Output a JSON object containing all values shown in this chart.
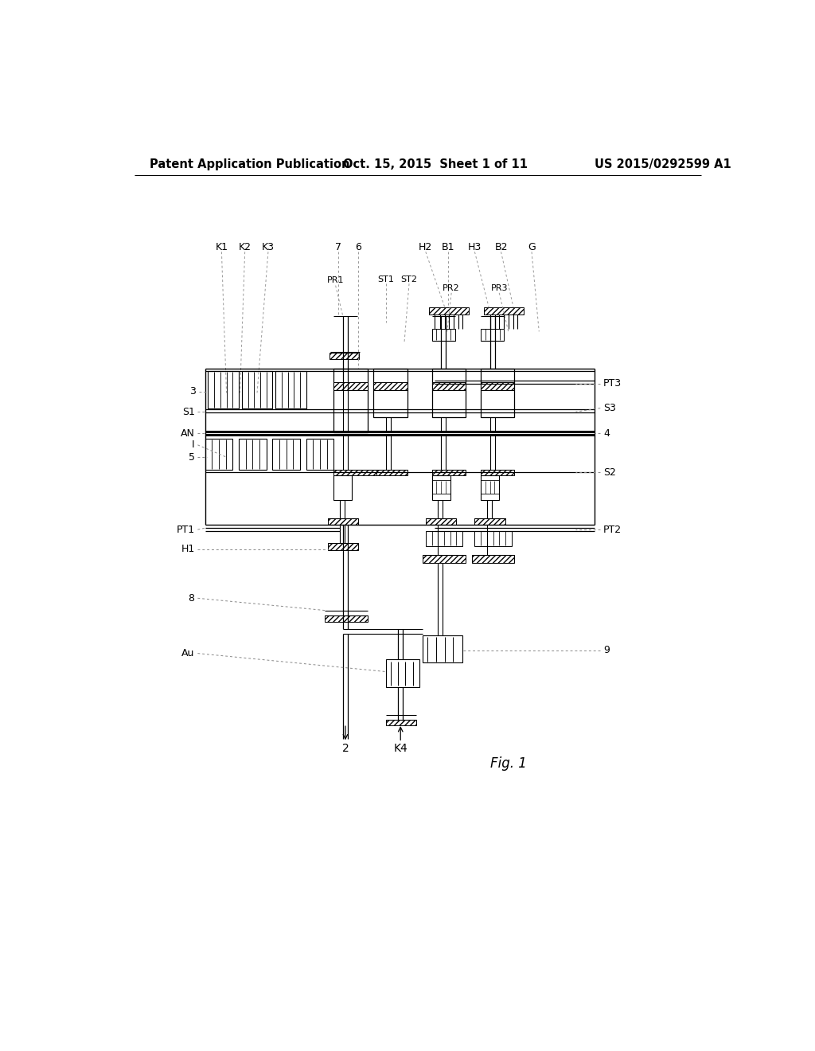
{
  "header_left": "Patent Application Publication",
  "header_center": "Oct. 15, 2015  Sheet 1 of 11",
  "header_right": "US 2015/0292599 A1",
  "figure_label": "Fig. 1",
  "bg_color": "#ffffff"
}
